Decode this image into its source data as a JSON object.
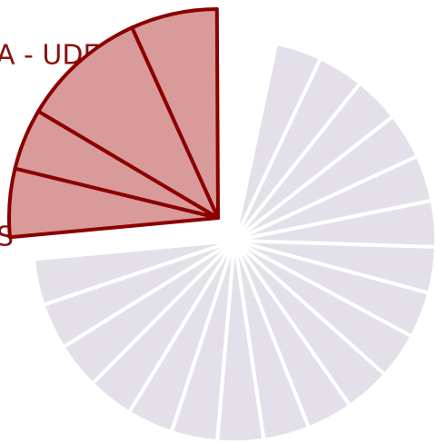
{
  "chart_data": {
    "type": "pie",
    "values": [
      13.3,
      13.3,
      13.3,
      13.3,
      13.3,
      13.3,
      13.3,
      13.3,
      13.3,
      13.3,
      13.3,
      13.3,
      13.3,
      13.3,
      13.3,
      13.3,
      13.3,
      13.3,
      13.3,
      19,
      17,
      35,
      24
    ],
    "color": "#e4e0ea",
    "highlight_color": "#d99a9a",
    "highlight_edge_color": "#8b0000",
    "highlighted": [
      19,
      20,
      21,
      22
    ],
    "annotations": [
      "A - UDE",
      "S"
    ]
  }
}
